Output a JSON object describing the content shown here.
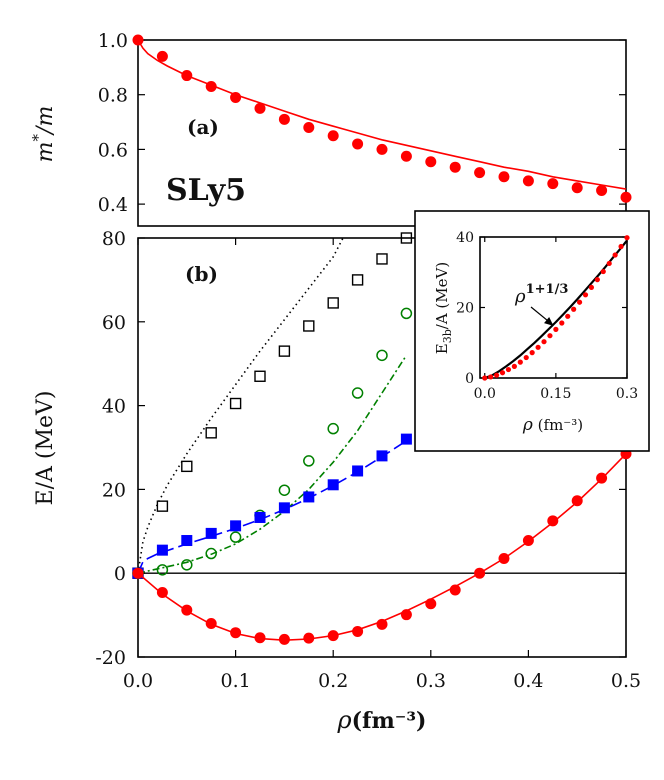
{
  "chart_data": [
    {
      "type": "scatter",
      "panel_label": "(a)",
      "model_label": "SLy5",
      "ylabel": "m*/m",
      "xlim": [
        0,
        0.5
      ],
      "ylim": [
        0.32,
        1.0
      ],
      "yticks": [
        "0.4",
        "0.6",
        "0.8",
        "1.0"
      ],
      "yticks_values": [
        0.4,
        0.6,
        0.8,
        1.0
      ],
      "series": [
        {
          "style": "filled-circle",
          "color": "#ff0000",
          "x": [
            0.0,
            0.025,
            0.05,
            0.075,
            0.1,
            0.125,
            0.15,
            0.175,
            0.2,
            0.225,
            0.25,
            0.275,
            0.3,
            0.325,
            0.35,
            0.375,
            0.4,
            0.425,
            0.45,
            0.475,
            0.5
          ],
          "y": [
            1.0,
            0.94,
            0.87,
            0.83,
            0.79,
            0.75,
            0.71,
            0.68,
            0.65,
            0.62,
            0.6,
            0.575,
            0.555,
            0.535,
            0.515,
            0.5,
            0.485,
            0.475,
            0.46,
            0.45,
            0.425
          ]
        },
        {
          "style": "solid-line",
          "color": "#ff0000",
          "x": [
            0.0,
            0.005,
            0.01,
            0.02,
            0.03,
            0.05,
            0.075,
            0.1,
            0.125,
            0.15,
            0.175,
            0.2,
            0.225,
            0.25,
            0.275,
            0.3,
            0.325,
            0.35,
            0.375,
            0.4,
            0.425,
            0.45,
            0.475,
            0.5
          ],
          "y": [
            1.0,
            0.97,
            0.95,
            0.925,
            0.905,
            0.87,
            0.835,
            0.8,
            0.77,
            0.74,
            0.71,
            0.685,
            0.66,
            0.635,
            0.615,
            0.595,
            0.575,
            0.555,
            0.535,
            0.52,
            0.5,
            0.485,
            0.47,
            0.455
          ]
        }
      ]
    },
    {
      "type": "scatter",
      "panel_label": "(b)",
      "ylabel": "E/A (MeV)",
      "xlabel": "ρ(fm⁻³)",
      "xlim": [
        0,
        0.5
      ],
      "ylim": [
        -20,
        80
      ],
      "xticks": [
        "0.0",
        "0.1",
        "0.2",
        "0.3",
        "0.4",
        "0.5"
      ],
      "xticks_values": [
        0,
        0.1,
        0.2,
        0.3,
        0.4,
        0.5
      ],
      "yticks": [
        "-20",
        "0",
        "20",
        "40",
        "60",
        "80"
      ],
      "yticks_values": [
        -20,
        0,
        20,
        40,
        60,
        80
      ],
      "series": [
        {
          "style": "open-square",
          "color": "#000000",
          "x": [
            0.0,
            0.025,
            0.05,
            0.075,
            0.1,
            0.125,
            0.15,
            0.175,
            0.2,
            0.225,
            0.25,
            0.275
          ],
          "y": [
            0,
            16,
            25.5,
            33.5,
            40.5,
            47,
            53,
            59,
            64.5,
            70,
            75,
            80
          ]
        },
        {
          "style": "dotted-line",
          "color": "#000000",
          "x": [
            0.0,
            0.005,
            0.01,
            0.02,
            0.03,
            0.05,
            0.075,
            0.1,
            0.125,
            0.15,
            0.175,
            0.2,
            0.21
          ],
          "y": [
            0,
            7.5,
            11,
            16.5,
            21,
            28.5,
            37,
            45,
            53,
            60.5,
            68,
            75.5,
            80
          ]
        },
        {
          "style": "open-circle",
          "color": "#008000",
          "x": [
            0.0,
            0.025,
            0.05,
            0.075,
            0.1,
            0.125,
            0.15,
            0.175,
            0.2,
            0.225,
            0.25,
            0.275
          ],
          "y": [
            0,
            0.8,
            2,
            4.7,
            8.6,
            13.8,
            19.8,
            26.8,
            34.5,
            43,
            52,
            62
          ]
        },
        {
          "style": "dash-dot-line",
          "color": "#008000",
          "x": [
            0.0,
            0.025,
            0.05,
            0.075,
            0.1,
            0.125,
            0.15,
            0.175,
            0.2,
            0.225,
            0.25,
            0.275
          ],
          "y": [
            0,
            1.3,
            2.6,
            4.5,
            7,
            10.5,
            14.8,
            20,
            26.5,
            34,
            43,
            52
          ]
        },
        {
          "style": "filled-square",
          "color": "#0000ff",
          "x": [
            0.0,
            0.025,
            0.05,
            0.075,
            0.1,
            0.125,
            0.15,
            0.175,
            0.2,
            0.225,
            0.25,
            0.275
          ],
          "y": [
            0,
            5.5,
            7.8,
            9.5,
            11.3,
            13.3,
            15.6,
            18.2,
            21.1,
            24.4,
            28,
            32
          ]
        },
        {
          "style": "dashed-line",
          "color": "#0000ff",
          "x": [
            0.0,
            0.005,
            0.01,
            0.02,
            0.03,
            0.05,
            0.075,
            0.1,
            0.125,
            0.15,
            0.175,
            0.2,
            0.225,
            0.25,
            0.275
          ],
          "y": [
            0,
            2.7,
            3.5,
            4.6,
            5.4,
            7,
            8.8,
            10.7,
            12.8,
            15.2,
            17.9,
            20.9,
            24.2,
            27.8,
            31.6
          ]
        },
        {
          "style": "filled-circle",
          "color": "#ff0000",
          "x": [
            0.0,
            0.025,
            0.05,
            0.075,
            0.1,
            0.125,
            0.15,
            0.175,
            0.2,
            0.225,
            0.25,
            0.275,
            0.3,
            0.325,
            0.35,
            0.375,
            0.4,
            0.425,
            0.45,
            0.475,
            0.5
          ],
          "y": [
            0,
            -4.6,
            -8.8,
            -12,
            -14.2,
            -15.4,
            -15.8,
            -15.5,
            -14.9,
            -13.9,
            -12.2,
            -9.9,
            -7.3,
            -4,
            0,
            3.5,
            7.8,
            12.5,
            17.3,
            22.7,
            28.5
          ]
        },
        {
          "style": "solid-line",
          "color": "#ff0000",
          "x": [
            0.0,
            0.025,
            0.05,
            0.075,
            0.1,
            0.125,
            0.15,
            0.175,
            0.2,
            0.225,
            0.25,
            0.275,
            0.3,
            0.325,
            0.35,
            0.375,
            0.4,
            0.425,
            0.45,
            0.475,
            0.5
          ],
          "y": [
            0,
            -5,
            -9,
            -12.2,
            -14.4,
            -15.6,
            -16,
            -15.7,
            -14.9,
            -13.5,
            -11.5,
            -9,
            -6.2,
            -3.2,
            0,
            3.5,
            7.6,
            12.1,
            17,
            22.5,
            28.5
          ]
        }
      ]
    },
    {
      "type": "scatter",
      "inset": true,
      "ylabel": "E3b/A (MeV)",
      "xlabel": "ρ (fm⁻³)",
      "annotation": "ρ1+1/3",
      "annotation_point": [
        0.145,
        14.8
      ],
      "xlim": [
        -0.01,
        0.3
      ],
      "ylim": [
        0,
        40
      ],
      "xticks": [
        "0.0",
        "0.15",
        "0.3"
      ],
      "xticks_values": [
        0,
        0.15,
        0.3
      ],
      "yticks": [
        "0",
        "20",
        "40"
      ],
      "yticks_values": [
        0,
        20,
        40
      ],
      "series": [
        {
          "style": "solid-line",
          "color": "#000000",
          "x": [
            0.0,
            0.015,
            0.03,
            0.045,
            0.06,
            0.075,
            0.09,
            0.105,
            0.12,
            0.135,
            0.15,
            0.165,
            0.18,
            0.195,
            0.21,
            0.225,
            0.24,
            0.255,
            0.27,
            0.285,
            0.3
          ],
          "y": [
            0,
            0.75,
            1.9,
            3.3,
            4.8,
            6.4,
            8.2,
            10,
            11.9,
            13.9,
            15.9,
            18,
            20.1,
            22.3,
            24.6,
            26.9,
            29.2,
            31.6,
            34.1,
            36.5,
            39
          ]
        },
        {
          "style": "small-filled-circle",
          "color": "#ff0000",
          "x": [
            0.0,
            0.0125,
            0.025,
            0.0375,
            0.05,
            0.0625,
            0.075,
            0.0875,
            0.1,
            0.1125,
            0.125,
            0.1375,
            0.15,
            0.1625,
            0.175,
            0.1875,
            0.2,
            0.2125,
            0.225,
            0.2375,
            0.25,
            0.2625,
            0.275,
            0.2875,
            0.3
          ],
          "y": [
            0,
            0.3,
            0.8,
            1.5,
            2.4,
            3.3,
            4.5,
            5.8,
            7.2,
            8.7,
            10.3,
            12,
            13.8,
            15.6,
            17.5,
            19.5,
            21.5,
            23.6,
            25.7,
            27.9,
            30.2,
            32.5,
            34.9,
            37.3,
            39.8
          ]
        }
      ]
    }
  ]
}
